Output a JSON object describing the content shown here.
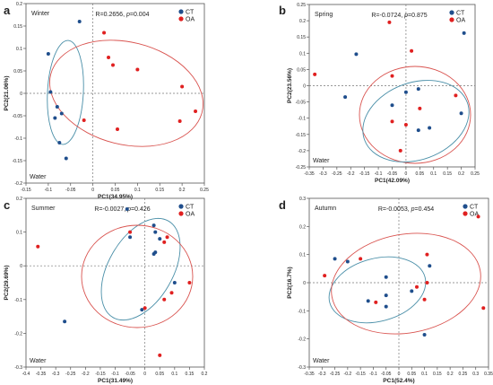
{
  "chart_data": [
    {
      "type": "scatter",
      "panel_label": "a",
      "season": "Winter",
      "stats": "R=0.2656, p=0.004",
      "stats_R": "R=0.2656, ",
      "stats_p_label": "p",
      "stats_p_value": "=0.004",
      "xlabel": "PC1(34.95%)",
      "ylabel": "PC2(21.06%)",
      "corner_label": "Water",
      "xlim": [
        -0.15,
        0.25
      ],
      "ylim": [
        -0.2,
        0.2
      ],
      "xticks": [
        "-0.15",
        "-0.1",
        "-0.05",
        "0",
        "0.05",
        "0.1",
        "0.15",
        "0.2",
        "0.25"
      ],
      "xtick_values": [
        -0.15,
        -0.1,
        -0.05,
        0,
        0.05,
        0.1,
        0.15,
        0.2,
        0.25
      ],
      "yticks": [
        "-0.2",
        "-0.15",
        "-0.1",
        "-0.05",
        "0",
        "0.05",
        "0.1",
        "0.15",
        "0.2"
      ],
      "ytick_values": [
        -0.2,
        -0.15,
        -0.1,
        -0.05,
        0,
        0.05,
        0.1,
        0.15,
        0.2
      ],
      "series": [
        {
          "name": "CT",
          "color": "#1f4e8c",
          "points": [
            [
              -0.03,
              0.16
            ],
            [
              -0.1,
              0.088
            ],
            [
              -0.095,
              0.003
            ],
            [
              -0.08,
              -0.03
            ],
            [
              -0.085,
              -0.055
            ],
            [
              -0.07,
              -0.045
            ],
            [
              -0.075,
              -0.11
            ],
            [
              -0.06,
              -0.145
            ]
          ]
        },
        {
          "name": "OA",
          "color": "#e02020",
          "points": [
            [
              0.025,
              0.135
            ],
            [
              0.035,
              0.08
            ],
            [
              0.045,
              0.063
            ],
            [
              0.1,
              0.053
            ],
            [
              0.2,
              0.015
            ],
            [
              0.23,
              -0.04
            ],
            [
              0.195,
              -0.062
            ],
            [
              0.055,
              -0.08
            ],
            [
              -0.02,
              -0.06
            ]
          ]
        }
      ]
    },
    {
      "type": "scatter",
      "panel_label": "b",
      "season": "Spring",
      "stats": "R=-0.0724, p=0.875",
      "stats_R": "R=-0.0724, ",
      "stats_p_label": "p",
      "stats_p_value": "=0.875",
      "xlabel": "PC1(42.09%)",
      "ylabel": "PC2(23.56%)",
      "corner_label": "Water",
      "xlim": [
        -0.35,
        0.25
      ],
      "ylim": [
        -0.25,
        0.25
      ],
      "xticks": [
        "-0.35",
        "-0.3",
        "-0.25",
        "-0.2",
        "-0.15",
        "-0.1",
        "-0.05",
        "0",
        "0.05",
        "0.1",
        "0.15",
        "0.2",
        "0.25"
      ],
      "xtick_values": [
        -0.35,
        -0.3,
        -0.25,
        -0.2,
        -0.15,
        -0.1,
        -0.05,
        0,
        0.05,
        0.1,
        0.15,
        0.2,
        0.25
      ],
      "yticks": [
        "-0.25",
        "-0.2",
        "-0.15",
        "-0.1",
        "-0.05",
        "0",
        "0.05",
        "0.1",
        "0.15",
        "0.2",
        "0.25"
      ],
      "ytick_values": [
        -0.25,
        -0.2,
        -0.15,
        -0.1,
        -0.05,
        0,
        0.05,
        0.1,
        0.15,
        0.2,
        0.25
      ],
      "series": [
        {
          "name": "CT",
          "color": "#1f4e8c",
          "points": [
            [
              0.21,
              0.162
            ],
            [
              -0.18,
              0.097
            ],
            [
              -0.22,
              -0.035
            ],
            [
              -0.05,
              -0.06
            ],
            [
              -0.0,
              -0.02
            ],
            [
              0.045,
              -0.01
            ],
            [
              0.2,
              -0.085
            ],
            [
              0.045,
              -0.137
            ],
            [
              0.085,
              -0.13
            ]
          ]
        },
        {
          "name": "OA",
          "color": "#e02020",
          "points": [
            [
              -0.06,
              0.195
            ],
            [
              0.02,
              0.107
            ],
            [
              -0.33,
              0.035
            ],
            [
              -0.05,
              0.03
            ],
            [
              0.18,
              -0.03
            ],
            [
              0.05,
              -0.07
            ],
            [
              -0.05,
              -0.11
            ],
            [
              0.0,
              -0.12
            ],
            [
              -0.02,
              -0.2
            ]
          ]
        }
      ]
    },
    {
      "type": "scatter",
      "panel_label": "c",
      "season": "Summer",
      "stats": "R=-0.0027, p=0.426",
      "stats_R": "R=-0.0027, ",
      "stats_p_label": "p",
      "stats_p_value": "=0.426",
      "xlabel": "PC1(31.49%)",
      "ylabel": "PC2(29.69%)",
      "corner_label": "Water",
      "xlim": [
        -0.4,
        0.2
      ],
      "ylim": [
        -0.3,
        0.2
      ],
      "xticks": [
        "-0.4",
        "-0.35",
        "-0.3",
        "-0.25",
        "-0.2",
        "-0.15",
        "-0.1",
        "-0.05",
        "0",
        "0.05",
        "0.1",
        "0.15",
        "0.2"
      ],
      "xtick_values": [
        -0.4,
        -0.35,
        -0.3,
        -0.25,
        -0.2,
        -0.15,
        -0.1,
        -0.05,
        0,
        0.05,
        0.1,
        0.15,
        0.2
      ],
      "yticks": [
        "-0.3",
        "-0.2",
        "-0.1",
        "0",
        "0.1",
        "0.2"
      ],
      "ytick_values": [
        -0.3,
        -0.2,
        -0.1,
        0,
        0.1,
        0.2
      ],
      "series": [
        {
          "name": "CT",
          "color": "#1f4e8c",
          "points": [
            [
              -0.06,
              0.168
            ],
            [
              0.03,
              0.12
            ],
            [
              0.035,
              0.1
            ],
            [
              -0.05,
              0.085
            ],
            [
              0.05,
              0.08
            ],
            [
              0.03,
              0.035
            ],
            [
              0.035,
              0.04
            ],
            [
              0.1,
              -0.05
            ],
            [
              -0.01,
              -0.13
            ],
            [
              -0.27,
              -0.165
            ]
          ]
        },
        {
          "name": "OA",
          "color": "#e02020",
          "points": [
            [
              -0.05,
              0.1
            ],
            [
              0.075,
              0.085
            ],
            [
              0.065,
              0.07
            ],
            [
              -0.36,
              0.057
            ],
            [
              0.09,
              -0.08
            ],
            [
              0.15,
              -0.05
            ],
            [
              0.065,
              -0.1
            ],
            [
              0.0,
              -0.125
            ],
            [
              0.05,
              -0.265
            ]
          ]
        }
      ]
    },
    {
      "type": "scatter",
      "panel_label": "d",
      "season": "Autumn",
      "stats": "R=-0.0053, p=0.454",
      "stats_R": "R=-0.0053, ",
      "stats_p_label": "p",
      "stats_p_value": "=0.454",
      "xlabel": "PC1(52.4%)",
      "ylabel": "PC2(16.7%)",
      "corner_label": "Water",
      "xlim": [
        -0.35,
        0.35
      ],
      "ylim": [
        -0.3,
        0.3
      ],
      "xticks": [
        "-0.35",
        "-0.3",
        "-0.25",
        "-0.2",
        "-0.15",
        "-0.1",
        "-0.05",
        "0",
        "0.05",
        "0.1",
        "0.15",
        "0.2",
        "0.25",
        "0.3",
        "0.35"
      ],
      "xtick_values": [
        -0.35,
        -0.3,
        -0.25,
        -0.2,
        -0.15,
        -0.1,
        -0.05,
        0,
        0.05,
        0.1,
        0.15,
        0.2,
        0.25,
        0.3,
        0.35
      ],
      "yticks": [
        "-0.3",
        "-0.2",
        "-0.1",
        "0",
        "0.1",
        "0.2",
        "0.3"
      ],
      "ytick_values": [
        -0.3,
        -0.2,
        -0.1,
        0,
        0.1,
        0.2,
        0.3
      ],
      "series": [
        {
          "name": "CT",
          "color": "#1f4e8c",
          "points": [
            [
              -0.25,
              0.085
            ],
            [
              -0.2,
              0.075
            ],
            [
              0.12,
              0.06
            ],
            [
              -0.05,
              0.02
            ],
            [
              -0.12,
              -0.065
            ],
            [
              -0.05,
              -0.045
            ],
            [
              0.05,
              -0.03
            ],
            [
              -0.05,
              -0.085
            ],
            [
              0.1,
              -0.185
            ]
          ]
        },
        {
          "name": "OA",
          "color": "#e02020",
          "points": [
            [
              0.31,
              0.235
            ],
            [
              0.11,
              0.1
            ],
            [
              -0.15,
              0.085
            ],
            [
              -0.29,
              0.025
            ],
            [
              0.11,
              0.0
            ],
            [
              0.07,
              -0.015
            ],
            [
              -0.09,
              -0.07
            ],
            [
              0.1,
              -0.06
            ],
            [
              0.33,
              -0.09
            ]
          ]
        }
      ]
    }
  ]
}
